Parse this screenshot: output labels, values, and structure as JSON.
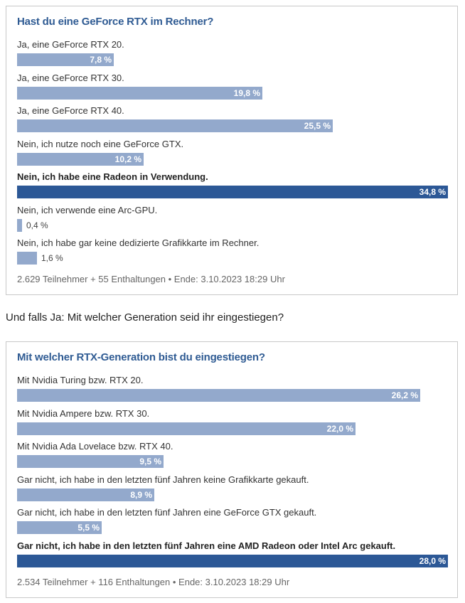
{
  "colors": {
    "bar": "#93a9cc",
    "winner_bar": "#2c5896",
    "title": "#2f5b93"
  },
  "poll1": {
    "title": "Hast du eine GeForce RTX im Rechner?",
    "options": [
      {
        "label": "Ja, eine GeForce RTX 20.",
        "percent": 7.8,
        "percent_text": "7,8 %",
        "winner": false
      },
      {
        "label": "Ja, eine GeForce RTX 30.",
        "percent": 19.8,
        "percent_text": "19,8 %",
        "winner": false
      },
      {
        "label": "Ja, eine GeForce RTX 40.",
        "percent": 25.5,
        "percent_text": "25,5 %",
        "winner": false
      },
      {
        "label": "Nein, ich nutze noch eine GeForce GTX.",
        "percent": 10.2,
        "percent_text": "10,2 %",
        "winner": false
      },
      {
        "label": "Nein, ich habe eine Radeon in Verwendung.",
        "percent": 34.8,
        "percent_text": "34,8 %",
        "winner": true
      },
      {
        "label": "Nein, ich verwende eine Arc-GPU.",
        "percent": 0.4,
        "percent_text": "0,4 %",
        "winner": false
      },
      {
        "label": "Nein, ich habe gar keine dedizierte Grafikkarte im Rechner.",
        "percent": 1.6,
        "percent_text": "1,6 %",
        "winner": false
      }
    ],
    "footer": "2.629 Teilnehmer  +  55 Enthaltungen  •  Ende: 3.10.2023 18:29 Uhr"
  },
  "between_text": "Und falls Ja: Mit welcher Generation seid ihr eingestiegen?",
  "poll2": {
    "title": "Mit welcher RTX-Generation bist du eingestiegen?",
    "options": [
      {
        "label": "Mit Nvidia Turing bzw. RTX 20.",
        "percent": 26.2,
        "percent_text": "26,2 %",
        "winner": false
      },
      {
        "label": "Mit Nvidia Ampere bzw. RTX 30.",
        "percent": 22.0,
        "percent_text": "22,0 %",
        "winner": false
      },
      {
        "label": "Mit Nvidia Ada Lovelace bzw. RTX 40.",
        "percent": 9.5,
        "percent_text": "9,5 %",
        "winner": false
      },
      {
        "label": "Gar nicht, ich habe in den letzten fünf Jahren keine Grafikkarte gekauft.",
        "percent": 8.9,
        "percent_text": "8,9 %",
        "winner": false
      },
      {
        "label": "Gar nicht, ich habe in den letzten fünf Jahren eine GeForce GTX gekauft.",
        "percent": 5.5,
        "percent_text": "5,5 %",
        "winner": false
      },
      {
        "label": "Gar nicht, ich habe in den letzten fünf Jahren eine AMD Radeon oder Intel Arc gekauft.",
        "percent": 28.0,
        "percent_text": "28,0 %",
        "winner": true
      }
    ],
    "footer": "2.534 Teilnehmer  +  116 Enthaltungen  •  Ende: 3.10.2023 18:29 Uhr"
  }
}
